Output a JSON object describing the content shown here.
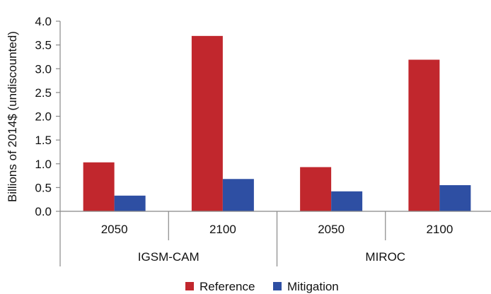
{
  "chart_data": {
    "type": "bar",
    "title": "",
    "xlabel": "",
    "ylabel": "Billions of 2014$ (undiscounted)",
    "ylim": [
      0,
      4.0
    ],
    "yticks": [
      "0.0",
      "0.5",
      "1.0",
      "1.5",
      "2.0",
      "2.5",
      "3.0",
      "3.5",
      "4.0"
    ],
    "grid": false,
    "legend_position": "bottom",
    "groups": [
      {
        "label": "IGSM-CAM",
        "categories": [
          "2050",
          "2100"
        ]
      },
      {
        "label": "MIROC",
        "categories": [
          "2050",
          "2100"
        ]
      }
    ],
    "categories": [
      "2050",
      "2100",
      "2050",
      "2100"
    ],
    "series": [
      {
        "name": "Reference",
        "color": "#c1272d",
        "values": [
          1.03,
          3.69,
          0.93,
          3.19
        ]
      },
      {
        "name": "Mitigation",
        "color": "#2e4fa3",
        "values": [
          0.33,
          0.68,
          0.42,
          0.55
        ]
      }
    ]
  }
}
